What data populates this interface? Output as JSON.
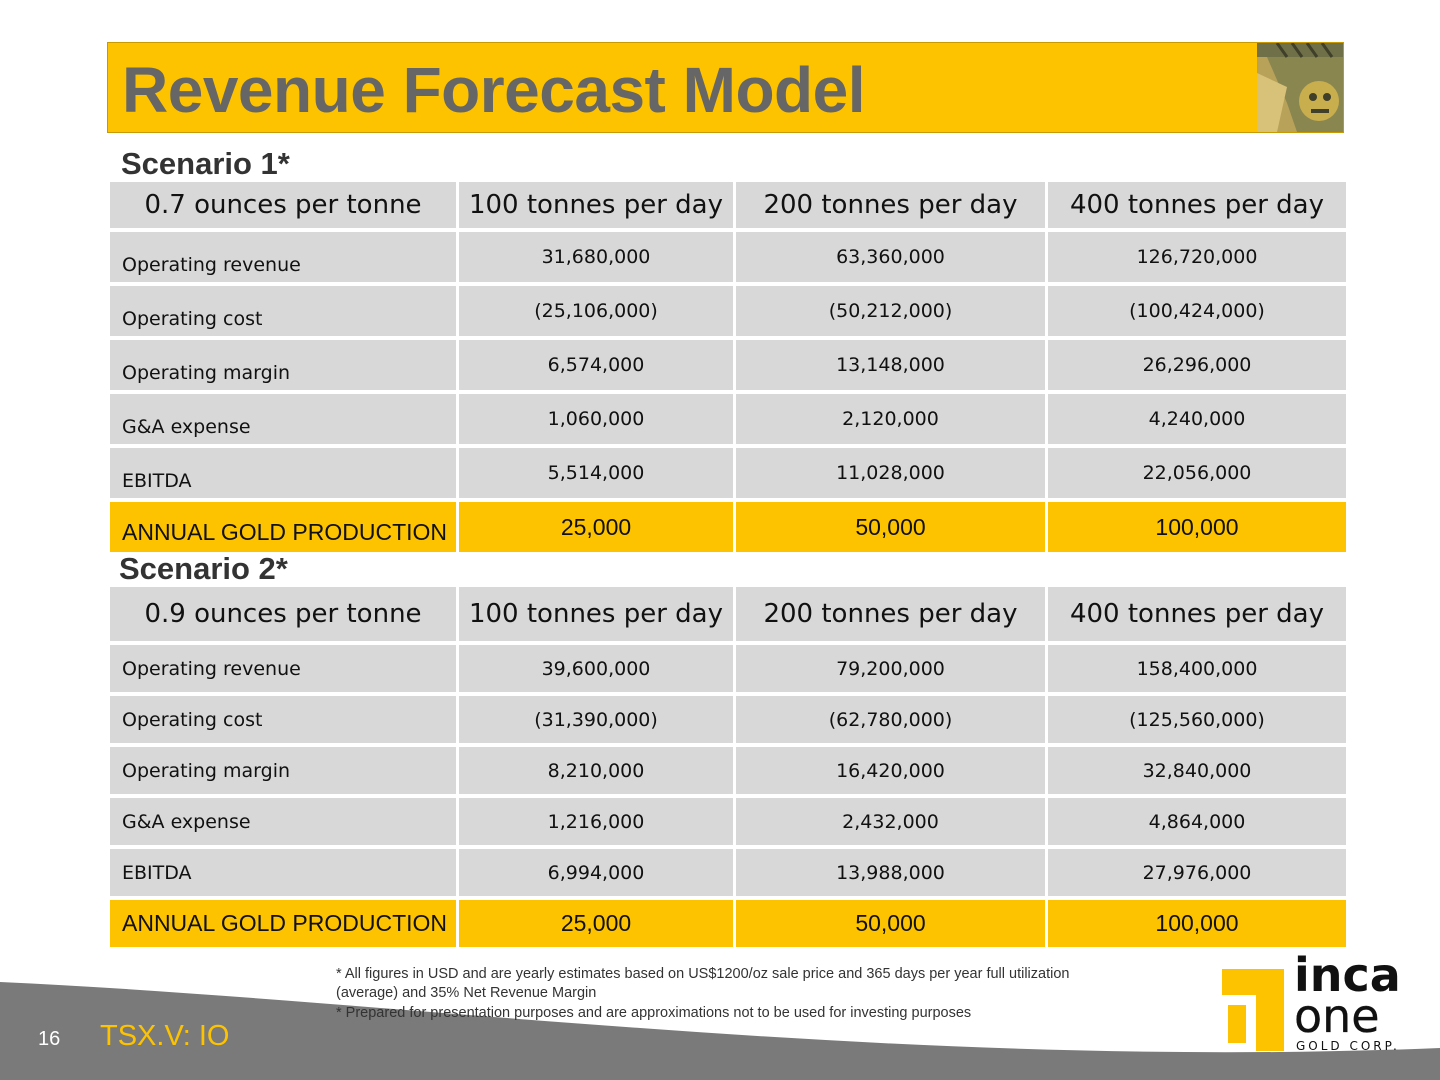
{
  "title": "Revenue Forecast Model",
  "scenarios": [
    {
      "title": "Scenario 1*",
      "header": [
        "0.7 ounces per tonne",
        "100 tonnes per day",
        "200 tonnes per day",
        "400 tonnes per day"
      ],
      "rows": [
        {
          "label": "Operating revenue",
          "values": [
            "31,680,000",
            "63,360,000",
            "126,720,000"
          ]
        },
        {
          "label": "Operating cost",
          "values": [
            "(25,106,000)",
            "(50,212,000)",
            "(100,424,000)"
          ]
        },
        {
          "label": "Operating margin",
          "values": [
            "6,574,000",
            "13,148,000",
            "26,296,000"
          ]
        },
        {
          "label": "G&A expense",
          "values": [
            "1,060,000",
            "2,120,000",
            "4,240,000"
          ]
        },
        {
          "label": "EBITDA",
          "values": [
            "5,514,000",
            "11,028,000",
            "22,056,000"
          ]
        }
      ],
      "total": {
        "label": "ANNUAL GOLD PRODUCTION",
        "values": [
          "25,000",
          "50,000",
          "100,000"
        ]
      }
    },
    {
      "title": "Scenario 2*",
      "header": [
        "0.9 ounces per tonne",
        "100 tonnes per day",
        "200 tonnes per day",
        "400 tonnes per day"
      ],
      "rows": [
        {
          "label": "Operating revenue",
          "values": [
            "39,600,000",
            "79,200,000",
            "158,400,000"
          ]
        },
        {
          "label": "Operating cost",
          "values": [
            "(31,390,000)",
            "(62,780,000)",
            "(125,560,000)"
          ]
        },
        {
          "label": "Operating margin",
          "values": [
            "8,210,000",
            "16,420,000",
            "32,840,000"
          ]
        },
        {
          "label": "G&A expense",
          "values": [
            "1,216,000",
            "2,432,000",
            "4,864,000"
          ]
        },
        {
          "label": "EBITDA",
          "values": [
            "6,994,000",
            "13,988,000",
            "27,976,000"
          ]
        }
      ],
      "total": {
        "label": "ANNUAL GOLD PRODUCTION",
        "values": [
          "25,000",
          "50,000",
          "100,000"
        ]
      }
    }
  ],
  "footnotes": [
    "*  All figures in USD and are yearly estimates based on US$1200/oz sale price and 365 days per year full utilization",
    "(average) and 35% Net Revenue Margin",
    "*  Prepared for presentation purposes and are approximations not to be used for investing purposes"
  ],
  "footer": {
    "page_number": "16",
    "ticker": "TSX.V: IO"
  },
  "logo": {
    "line1": "inca",
    "line2": "one",
    "line3": "GOLD CORP."
  },
  "colors": {
    "accent": "#fdc300",
    "cell": "#d8d8d8",
    "title_text": "#666666",
    "footer_band": "#7a7a7a"
  }
}
